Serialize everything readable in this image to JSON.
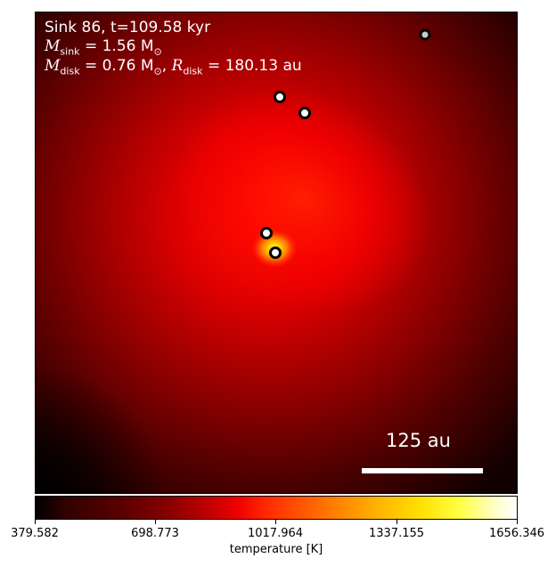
{
  "info": {
    "line1": "Sink 86, t=109.58 kyr",
    "m_sink_symbol": "M",
    "m_sink_sub": "sink",
    "m_sink_value": "= 1.56 M",
    "m_sink_unit_sub": "⊙",
    "m_disk_symbol": "M",
    "m_disk_sub": "disk",
    "m_disk_value": "= 0.76 M",
    "m_disk_unit_sub": "⊙",
    "r_disk_symbol": "R",
    "r_disk_sub": "disk",
    "r_disk_value": "= 180.13 au"
  },
  "scale_bar": {
    "label": "125 au"
  },
  "colorbar": {
    "ticks": [
      "379.582",
      "698.773",
      "1017.964",
      "1337.155",
      "1656.346"
    ],
    "label": "temperature [K]"
  },
  "colors": {
    "sink_fill_primary": "#ffffff",
    "sink_fill_distant": "#c8c8c8",
    "sink_edge": "#000000"
  }
}
